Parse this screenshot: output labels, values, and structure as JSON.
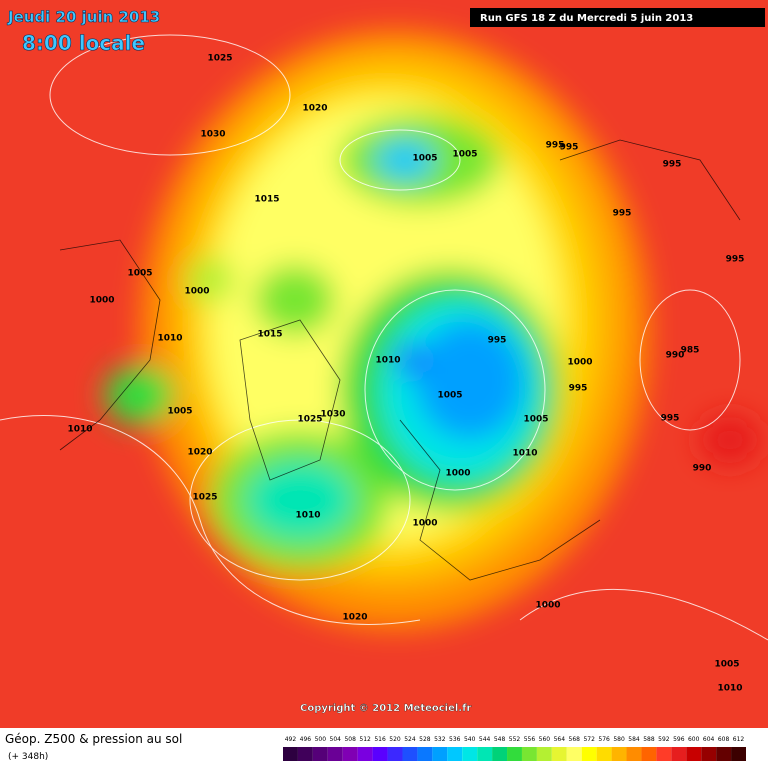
{
  "header": {
    "date": "Jeudi 20 juin 2013",
    "time": "8:00 locale",
    "run": "Run GFS 18 Z du Mercredi 5 juin 2013"
  },
  "isobar_labels": [
    "1025",
    "1020",
    "1030",
    "1005",
    "1005",
    "995",
    "995",
    "995",
    "1015",
    "995",
    "995",
    "1005",
    "1000",
    "1000",
    "1010",
    "1015",
    "995",
    "1010",
    "1000",
    "990",
    "985",
    "995",
    "1005",
    "1005",
    "1025",
    "1030",
    "1005",
    "995",
    "1010",
    "1020",
    "1010",
    "1000",
    "990",
    "1025",
    "1010",
    "1000",
    "1000",
    "1020",
    "1005",
    "1010"
  ],
  "copyright": "Copyright © 2012 Meteociel.fr",
  "legend": {
    "title": "Géop. Z500 & pression au sol",
    "lead_time": "(+ 348h)",
    "scale": [
      492,
      496,
      500,
      504,
      508,
      512,
      516,
      520,
      524,
      528,
      532,
      536,
      540,
      544,
      548,
      552,
      556,
      560,
      564,
      568,
      572,
      576,
      580,
      584,
      588,
      592,
      596,
      600,
      604,
      608,
      612
    ],
    "colors": [
      "#2d0040",
      "#40005a",
      "#550078",
      "#6a0096",
      "#8000b4",
      "#7a00e0",
      "#5a00ff",
      "#3c28ff",
      "#1e50ff",
      "#0a78ff",
      "#00a0ff",
      "#00c8ff",
      "#00e6e6",
      "#00e6b4",
      "#00d278",
      "#32dc3c",
      "#78e632",
      "#b4f032",
      "#e6f532",
      "#ffff64",
      "#ffff00",
      "#ffdc00",
      "#ffb400",
      "#ff8c00",
      "#ff6400",
      "#ff3c28",
      "#e61e1e",
      "#c80000",
      "#960000",
      "#640000",
      "#3c0000"
    ]
  }
}
